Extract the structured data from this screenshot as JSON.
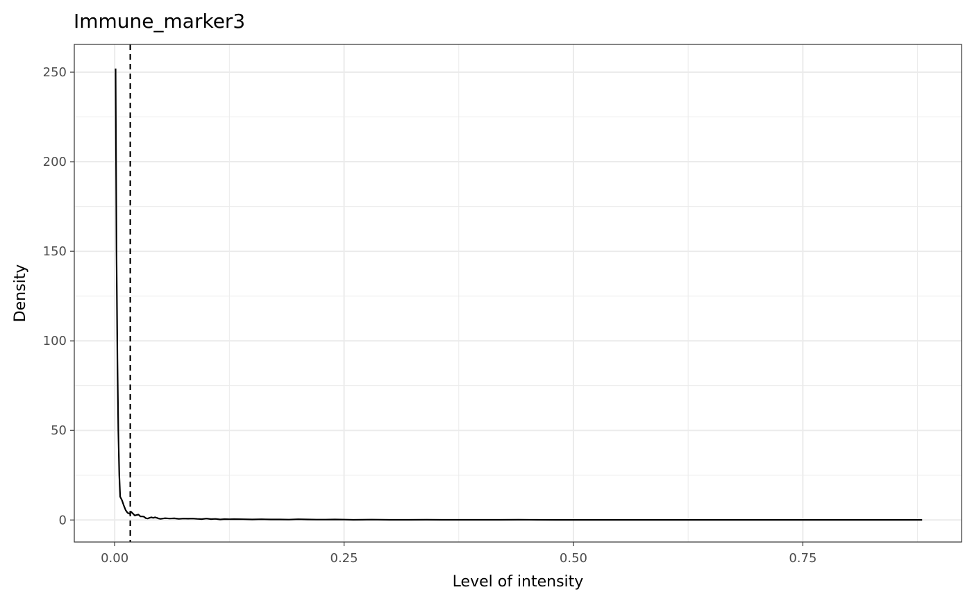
{
  "chart_data": {
    "type": "line",
    "title": "Immune_marker3",
    "xlabel": "Level of intensity",
    "ylabel": "Density",
    "xlim": [
      -0.044,
      0.923
    ],
    "ylim": [
      -12.3,
      265.5
    ],
    "x_major_ticks": [
      0.0,
      0.25,
      0.5,
      0.75
    ],
    "x_tick_labels": [
      "0.00",
      "0.25",
      "0.50",
      "0.75"
    ],
    "x_minor_ticks": [
      0.125,
      0.375,
      0.625,
      0.875
    ],
    "y_major_ticks": [
      0,
      50,
      100,
      150,
      200,
      250
    ],
    "y_tick_labels": [
      "0",
      "50",
      "100",
      "150",
      "200",
      "250"
    ],
    "y_minor_ticks": [
      25,
      75,
      125,
      175,
      225
    ],
    "grid": true,
    "theme": "bw",
    "threshold": {
      "x": 0.017,
      "style": "dashed"
    },
    "series": [
      {
        "color": "#000000",
        "x": [
          0.001,
          0.002,
          0.003,
          0.004,
          0.005,
          0.006,
          0.008,
          0.01,
          0.012,
          0.014,
          0.016,
          0.018,
          0.02,
          0.022,
          0.024,
          0.026,
          0.028,
          0.03,
          0.032,
          0.034,
          0.036,
          0.038,
          0.04,
          0.042,
          0.044,
          0.046,
          0.048,
          0.05,
          0.055,
          0.06,
          0.065,
          0.07,
          0.075,
          0.08,
          0.085,
          0.09,
          0.095,
          0.1,
          0.105,
          0.11,
          0.115,
          0.12,
          0.125,
          0.13,
          0.14,
          0.15,
          0.16,
          0.17,
          0.18,
          0.19,
          0.2,
          0.21,
          0.22,
          0.23,
          0.24,
          0.25,
          0.26,
          0.27,
          0.28,
          0.3,
          0.32,
          0.34,
          0.36,
          0.38,
          0.4,
          0.42,
          0.44,
          0.46,
          0.48,
          0.5,
          0.52,
          0.54,
          0.56,
          0.58,
          0.6,
          0.62,
          0.64,
          0.66,
          0.68,
          0.7,
          0.72,
          0.74,
          0.76,
          0.78,
          0.8,
          0.82,
          0.84,
          0.86,
          0.88
        ],
        "y": [
          252,
          150,
          90,
          50,
          25,
          13,
          11,
          8,
          5.5,
          4,
          3.5,
          4.5,
          3.5,
          2.5,
          2.8,
          3,
          2,
          2,
          1.8,
          1,
          0.8,
          1.2,
          1.5,
          1.2,
          1.5,
          1.2,
          0.8,
          0.6,
          1,
          0.8,
          0.9,
          0.6,
          0.8,
          0.7,
          0.8,
          0.6,
          0.5,
          0.8,
          0.5,
          0.6,
          0.3,
          0.5,
          0.4,
          0.5,
          0.4,
          0.3,
          0.4,
          0.3,
          0.3,
          0.2,
          0.4,
          0.3,
          0.2,
          0.2,
          0.3,
          0.2,
          0.1,
          0.15,
          0.2,
          0.1,
          0.1,
          0.15,
          0.1,
          0.1,
          0.1,
          0.1,
          0.15,
          0.1,
          0.05,
          0.05,
          0.05,
          0.05,
          0.05,
          0.05,
          0.05,
          0.05,
          0.05,
          0.05,
          0.05,
          0.05,
          0.05,
          0.05,
          0.05,
          0.05,
          0.05,
          0.05,
          0.05,
          0.05,
          0.05
        ]
      }
    ]
  }
}
